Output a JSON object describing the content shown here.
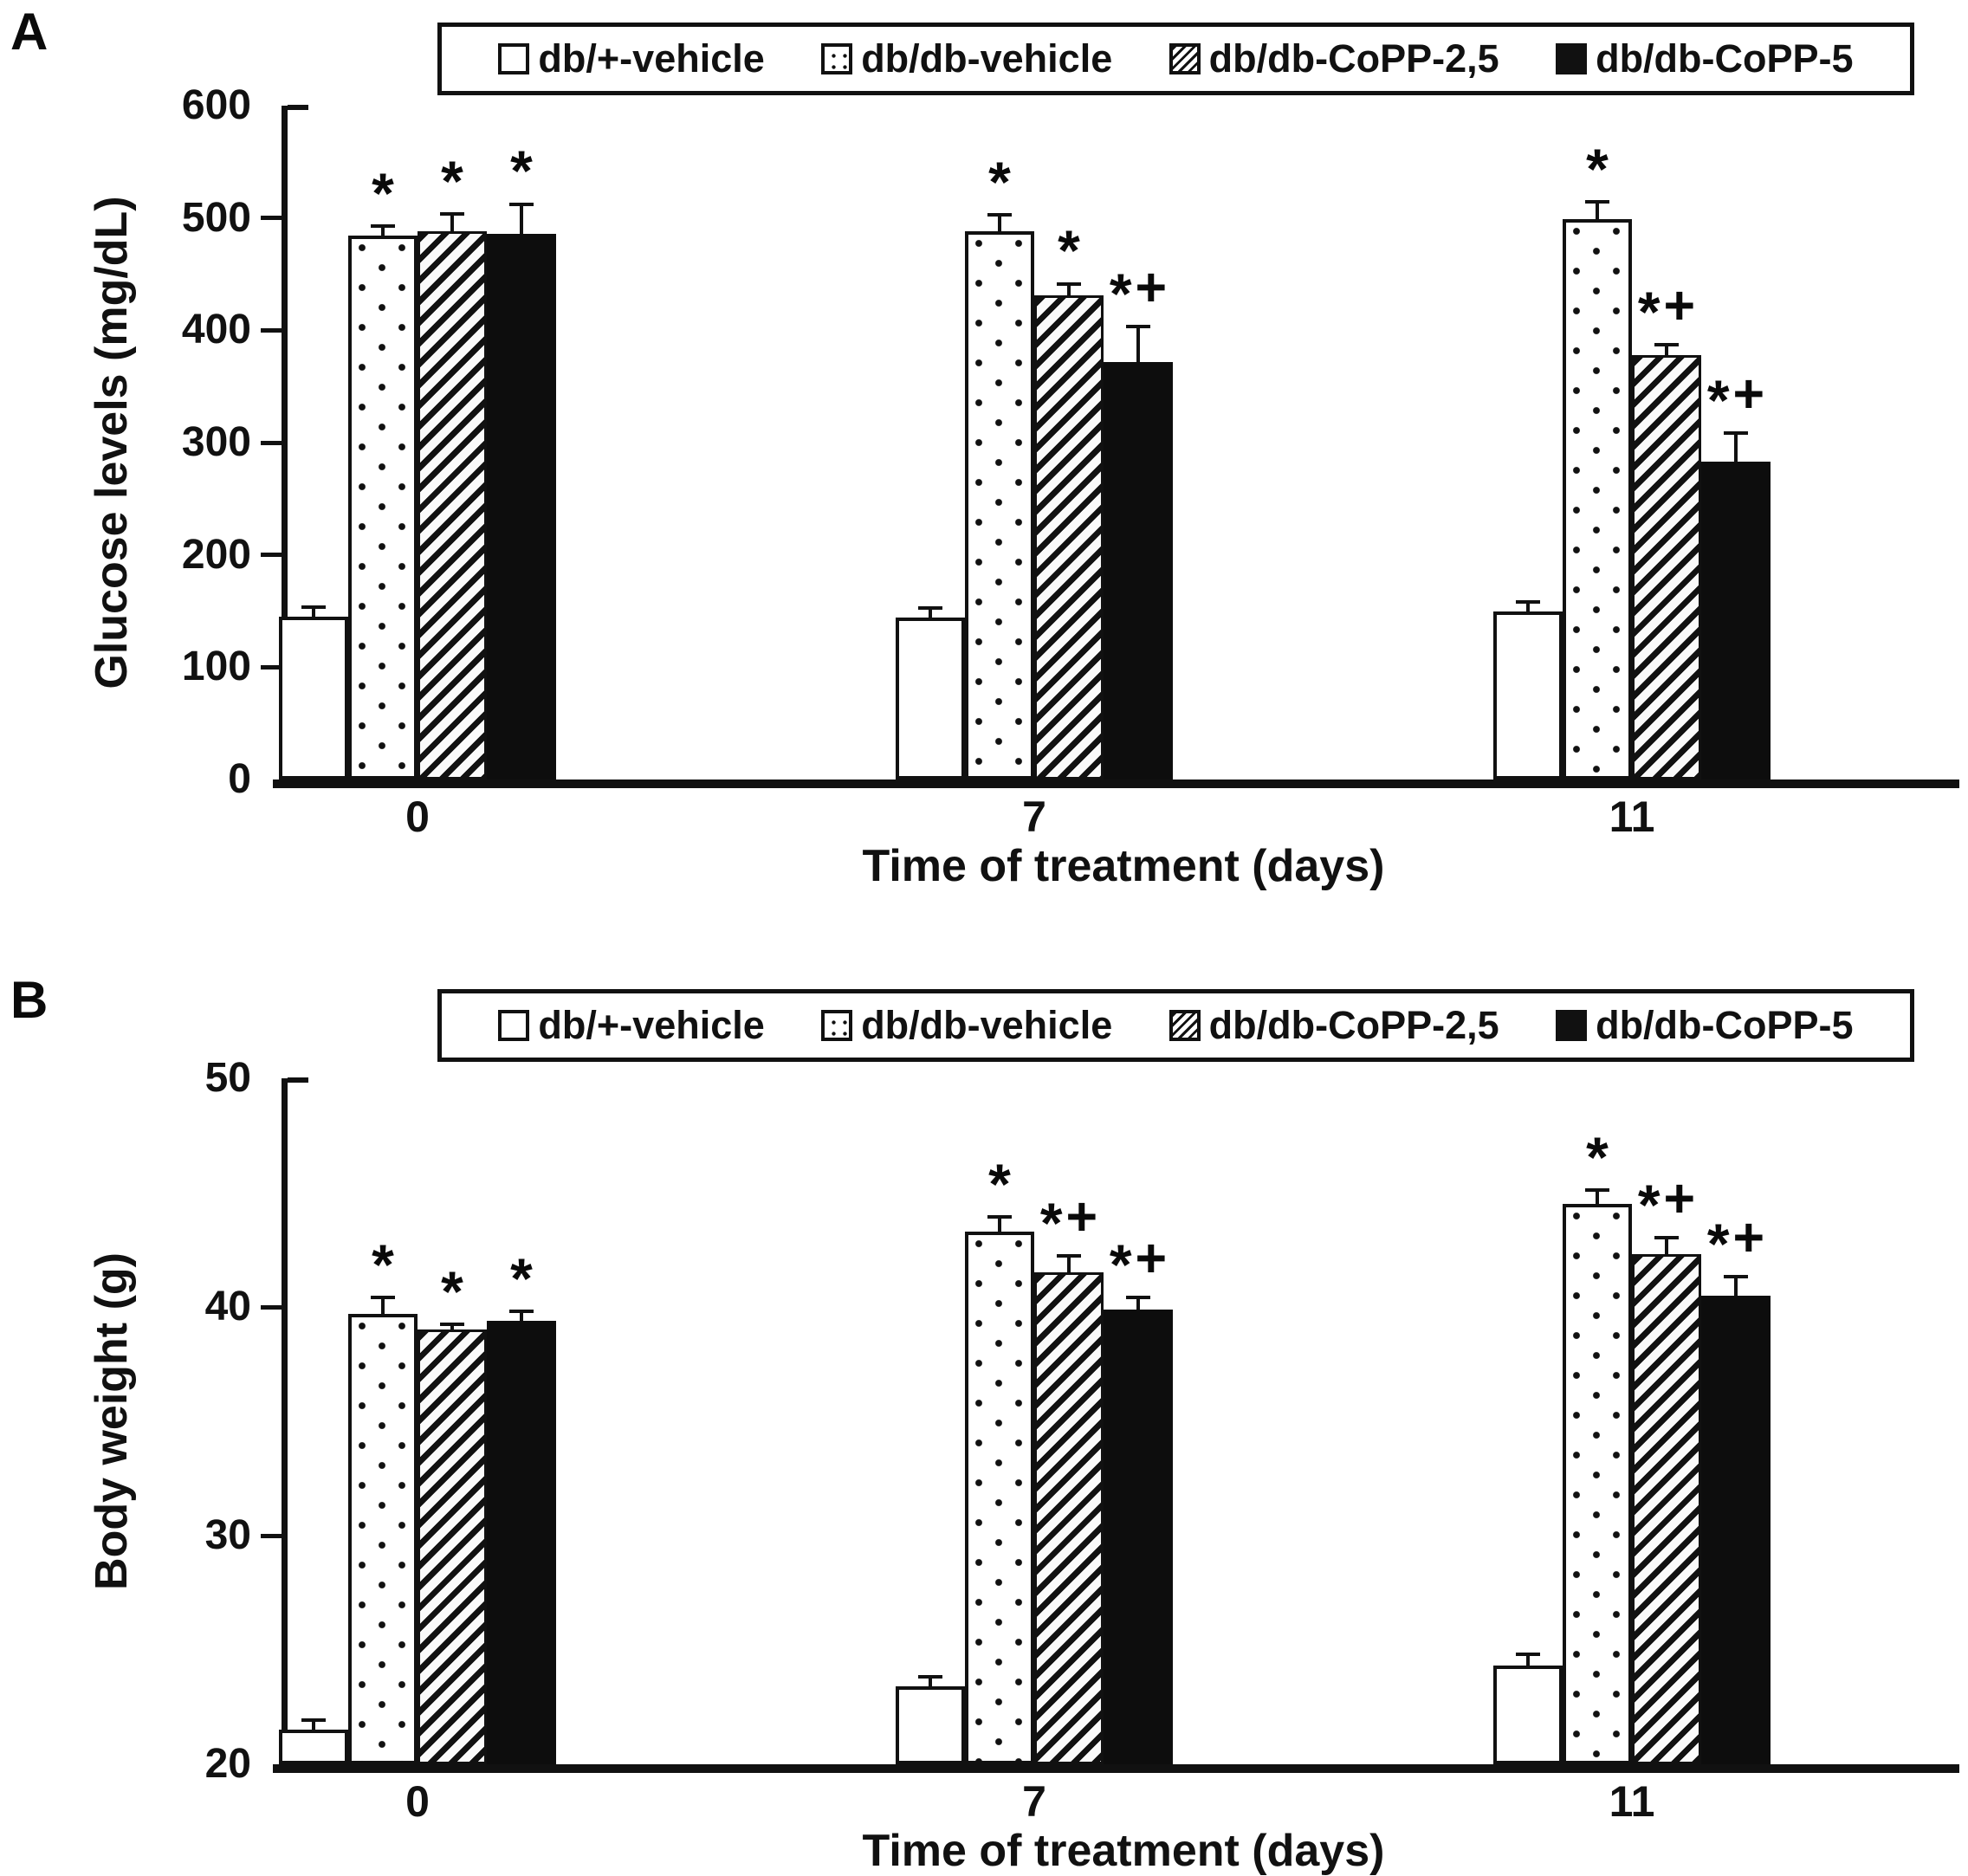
{
  "figure": {
    "background": "#ffffff",
    "foreground": "#111111",
    "panels": [
      {
        "label": "A"
      },
      {
        "label": "B"
      }
    ]
  },
  "chart_data": [
    {
      "type": "bar",
      "panel_label": "A",
      "title": "",
      "xlabel": "Time of treatment (days)",
      "ylabel": "Glucose levels (mg/dL)",
      "ylim": [
        0,
        600
      ],
      "yticks": [
        0,
        100,
        200,
        300,
        400,
        500,
        600
      ],
      "grid": false,
      "legend_position": "top",
      "categories": [
        "0",
        "7",
        "11"
      ],
      "series": [
        {
          "name": "db/+-vehicle",
          "pattern": "plain",
          "values": [
            145,
            144,
            150
          ],
          "errors": [
            10,
            10,
            10
          ],
          "annotations": [
            "",
            "",
            ""
          ]
        },
        {
          "name": "db/db-vehicle",
          "pattern": "dots",
          "values": [
            484,
            488,
            499
          ],
          "errors": [
            10,
            16,
            17
          ],
          "annotations": [
            "*",
            "*",
            "*"
          ]
        },
        {
          "name": "db/db-CoPP-2,5",
          "pattern": "diagonal-hatch",
          "values": [
            488,
            431,
            378
          ],
          "errors": [
            17,
            12,
            11
          ],
          "annotations": [
            "*",
            "*",
            "*+"
          ]
        },
        {
          "name": "db/db-CoPP-5",
          "pattern": "solid",
          "values": [
            486,
            372,
            283
          ],
          "errors": [
            28,
            33,
            27
          ],
          "annotations": [
            "*",
            "*+",
            "*+"
          ]
        }
      ]
    },
    {
      "type": "bar",
      "panel_label": "B",
      "title": "",
      "xlabel": "Time of treatment (days)",
      "ylabel": "Body weight (g)",
      "ylim": [
        20,
        50
      ],
      "yticks": [
        20,
        30,
        40,
        50
      ],
      "grid": false,
      "legend_position": "top",
      "categories": [
        "0",
        "7",
        "11"
      ],
      "series": [
        {
          "name": "db/+-vehicle",
          "pattern": "plain",
          "values": [
            21.5,
            23.4,
            24.3
          ],
          "errors": [
            0.5,
            0.5,
            0.6
          ],
          "annotations": [
            "",
            "",
            ""
          ]
        },
        {
          "name": "db/db-vehicle",
          "pattern": "dots",
          "values": [
            39.7,
            43.3,
            44.5
          ],
          "errors": [
            0.8,
            0.7,
            0.7
          ],
          "annotations": [
            "*",
            "*",
            "*"
          ]
        },
        {
          "name": "db/db-CoPP-2,5",
          "pattern": "diagonal-hatch",
          "values": [
            39.0,
            41.5,
            42.3
          ],
          "errors": [
            0.3,
            0.8,
            0.8
          ],
          "annotations": [
            "*",
            "*+",
            "*+"
          ]
        },
        {
          "name": "db/db-CoPP-5",
          "pattern": "solid",
          "values": [
            39.4,
            39.9,
            40.5
          ],
          "errors": [
            0.5,
            0.6,
            0.9
          ],
          "annotations": [
            "*",
            "*+",
            "*+"
          ]
        }
      ]
    }
  ]
}
